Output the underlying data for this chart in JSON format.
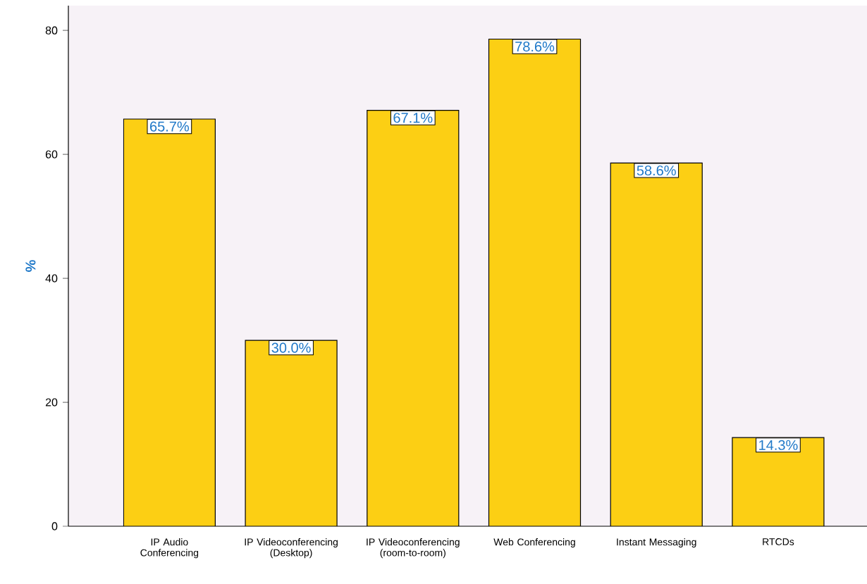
{
  "chart_data": {
    "type": "bar",
    "ylabel": "%",
    "categories": [
      "IP Audio Conferencing",
      "IP Videoconferencing (Desktop)",
      "IP Videoconferencing (room-to-room)",
      "Web Conferencing",
      "Instant Messaging",
      "RTCDs"
    ],
    "values": [
      65.7,
      30.0,
      67.1,
      78.6,
      58.6,
      14.3
    ],
    "value_labels": [
      "65.7%",
      "30.0%",
      "67.1%",
      "78.6%",
      "58.6%",
      "14.3%"
    ],
    "color": "#fccf14",
    "ylim": [
      0,
      84
    ],
    "yticks": [
      0,
      20,
      40,
      60,
      80
    ]
  }
}
